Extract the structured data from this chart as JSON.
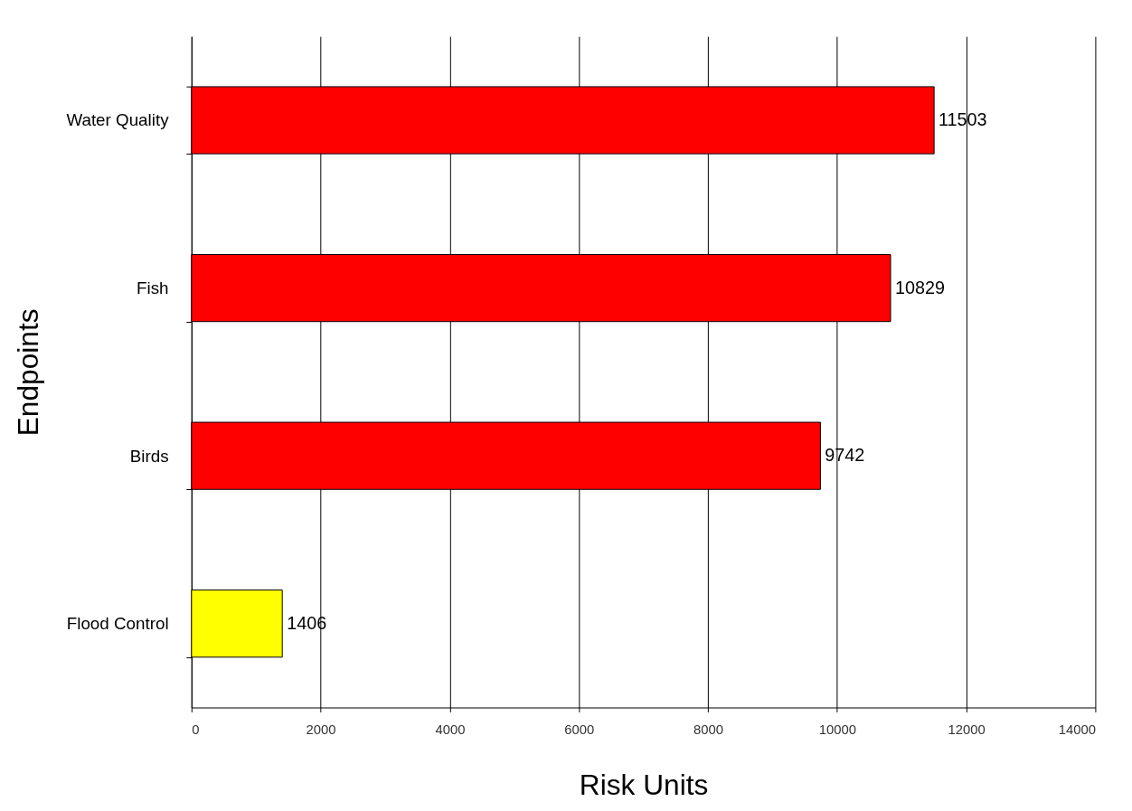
{
  "chart_data": {
    "type": "bar",
    "orientation": "horizontal",
    "categories": [
      "Water Quality",
      "Fish",
      "Birds",
      "Flood Control"
    ],
    "values": [
      11503,
      10829,
      9742,
      1406
    ],
    "colors": [
      "#ff0000",
      "#ff0000",
      "#ff0000",
      "#ffff00"
    ],
    "xlim": [
      0,
      14000
    ],
    "xticks": [
      0,
      2000,
      4000,
      6000,
      8000,
      10000,
      12000,
      14000
    ],
    "xlabel": "Risk Units",
    "ylabel": "Endpoints",
    "grid": "x",
    "data_labels": true
  }
}
